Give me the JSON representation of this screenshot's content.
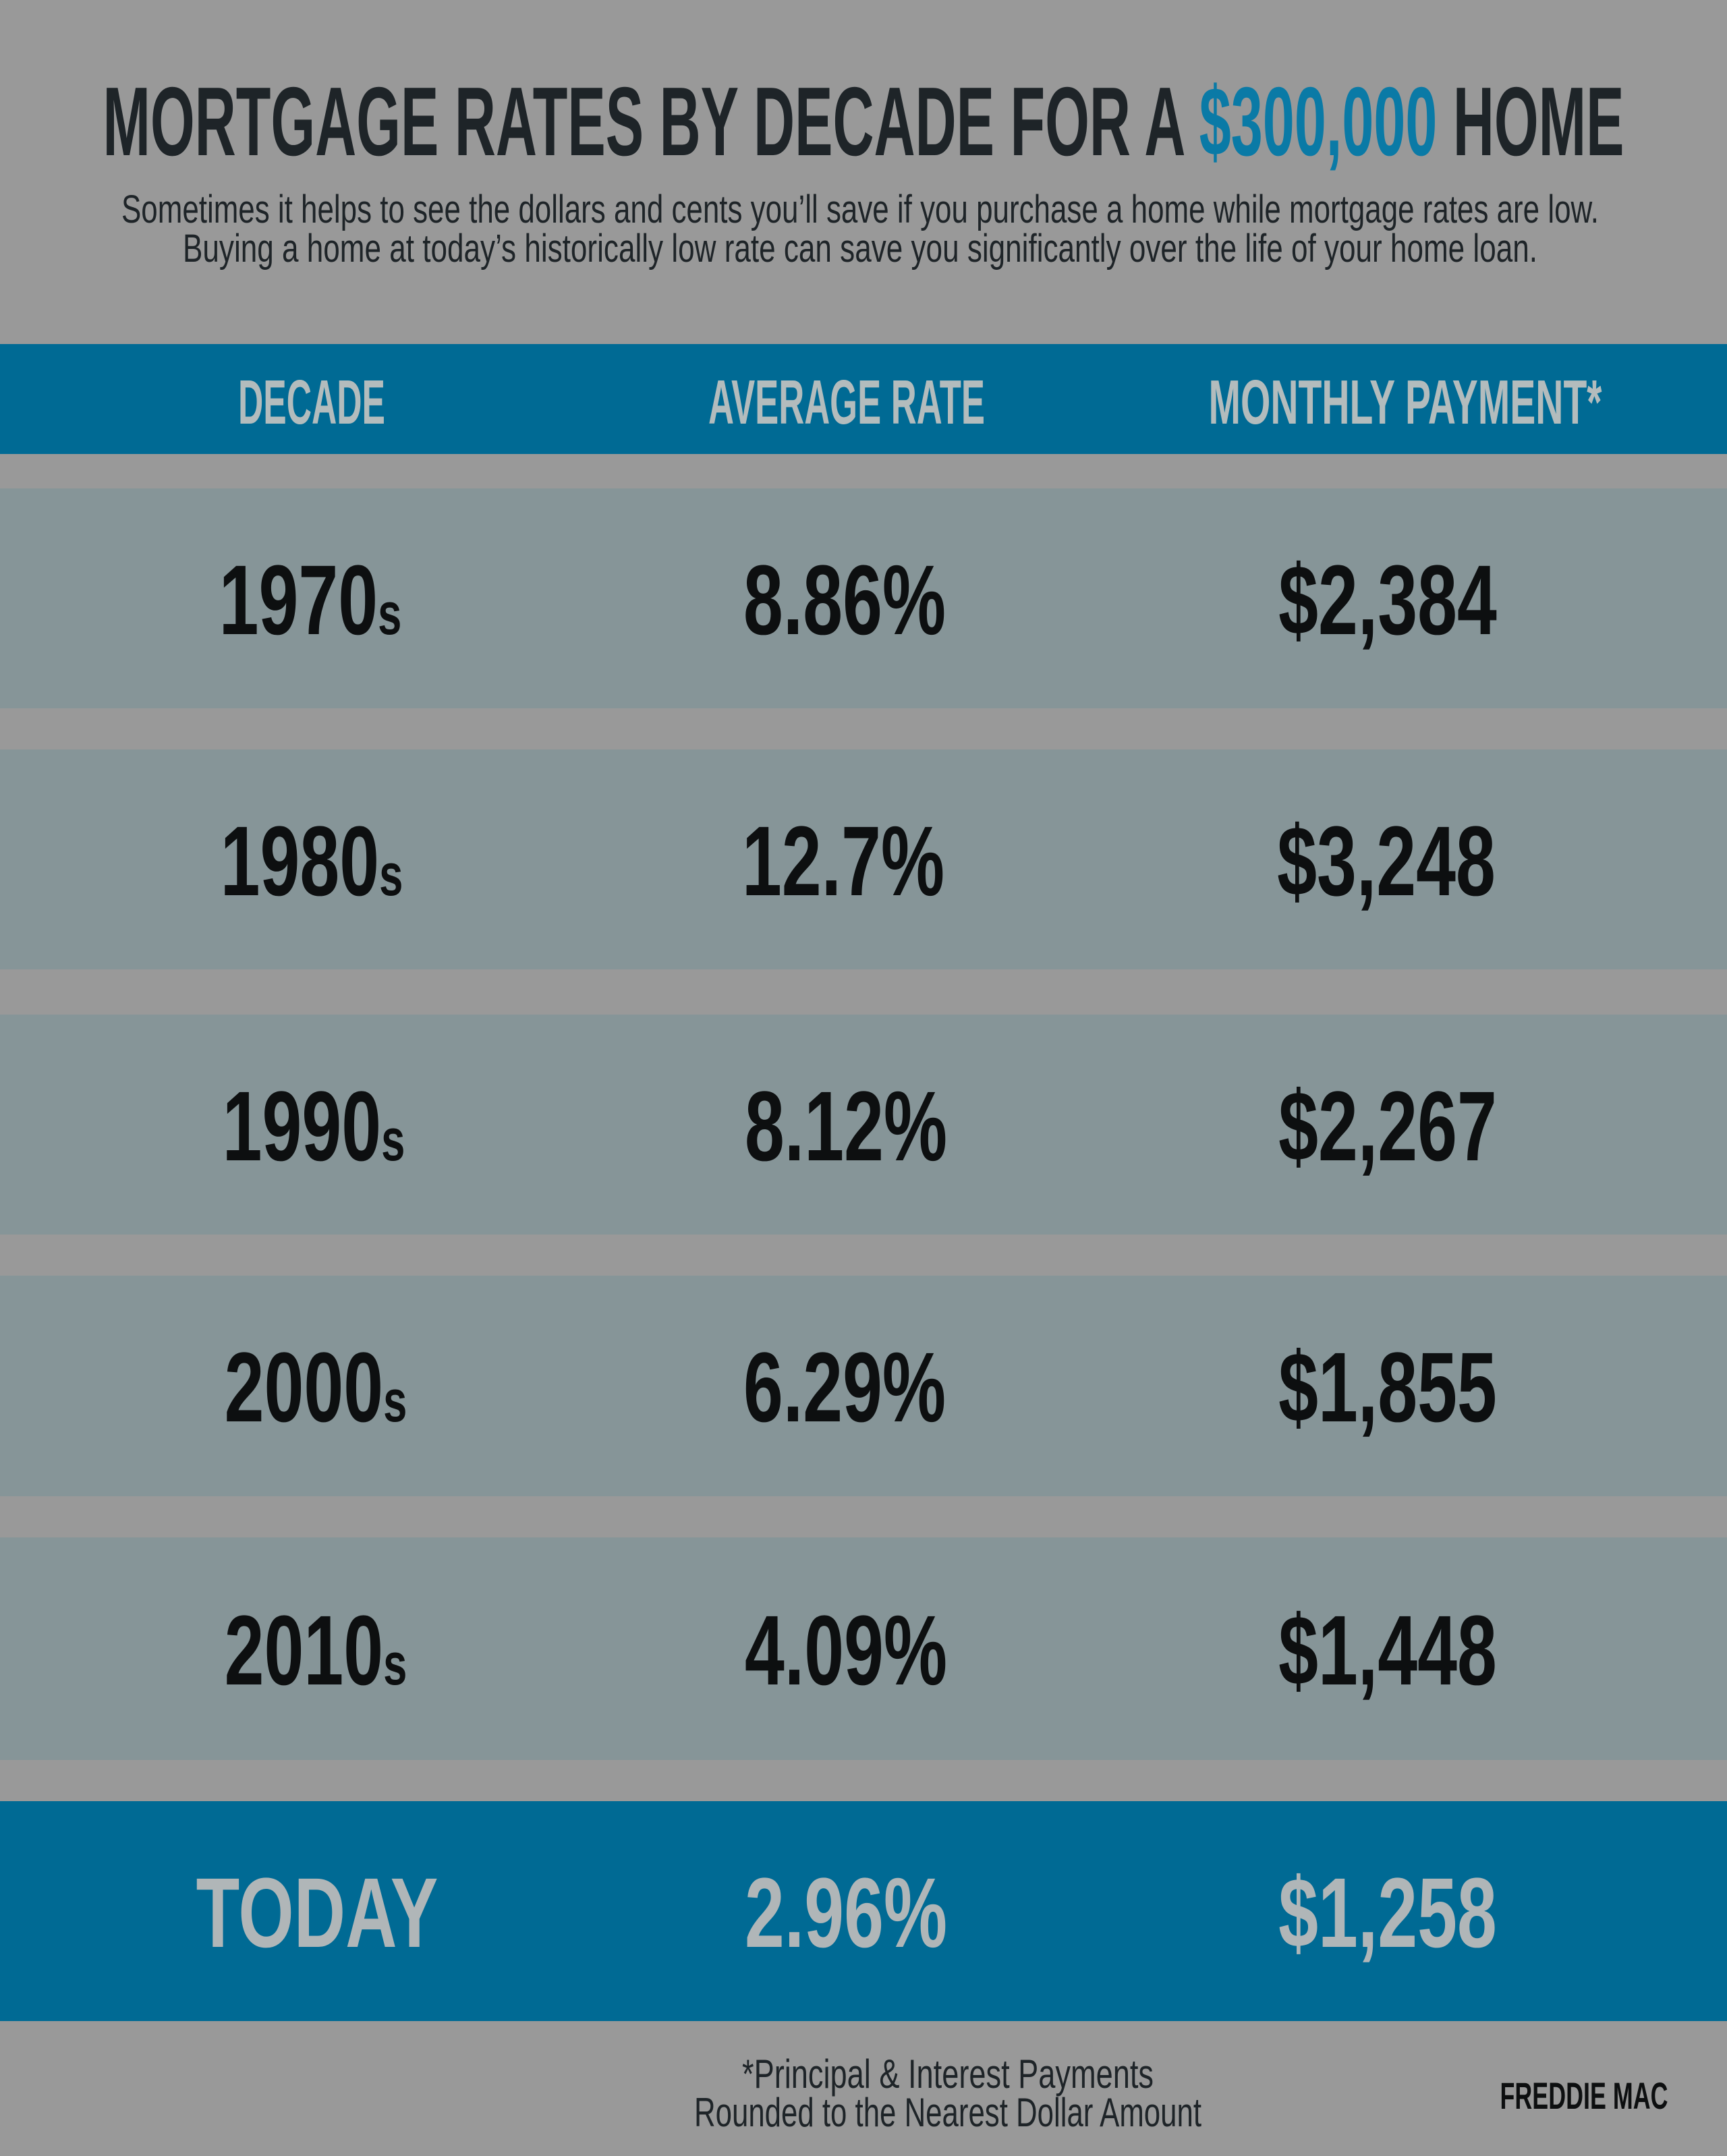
{
  "title": {
    "prefix": "MORTGAGE RATES BY DECADE FOR A ",
    "highlight": "$300,000",
    "suffix": " HOME"
  },
  "subtitle": [
    "Sometimes it helps to see the dollars and cents you’ll save if you purchase a home while mortgage rates are low.",
    "Buying a home at today’s historically low rate can save you significantly over the life of your home loan."
  ],
  "columns": [
    "DECADE",
    "AVERAGE RATE",
    "MONTHLY PAYMENT*"
  ],
  "rows": [
    {
      "decade": "1970",
      "suffix": "s",
      "rate": "8.86%",
      "payment": "$2,384"
    },
    {
      "decade": "1980",
      "suffix": "s",
      "rate": "12.7%",
      "payment": "$3,248"
    },
    {
      "decade": "1990",
      "suffix": "s",
      "rate": "8.12%",
      "payment": "$2,267"
    },
    {
      "decade": "2000",
      "suffix": "s",
      "rate": "6.29%",
      "payment": "$1,855"
    },
    {
      "decade": "2010",
      "suffix": "s",
      "rate": "4.09%",
      "payment": "$1,448"
    }
  ],
  "today": {
    "label": "TODAY",
    "rate": "2.96%",
    "payment": "$1,258"
  },
  "footnote": [
    "*Principal & Interest Payments",
    "Rounded to the Nearest Dollar Amount"
  ],
  "source": "FREDDIE MAC",
  "colors": {
    "background": "#999999",
    "accent": "#006a94",
    "highlight": "#0a7aa6",
    "row": "#869598"
  }
}
